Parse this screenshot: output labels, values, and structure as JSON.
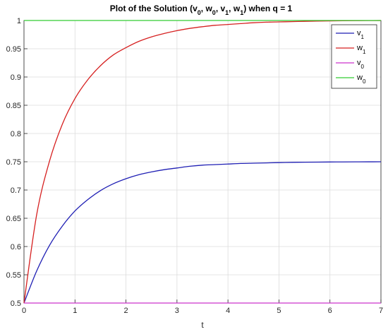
{
  "chart_data": {
    "type": "line",
    "title": "Plot of the Solution (v0, w0, v1, w1) when q = 1",
    "title_parts": [
      {
        "t": "Plot of the Solution (v"
      },
      {
        "t": "0",
        "sub": true
      },
      {
        "t": ", w"
      },
      {
        "t": "0",
        "sub": true
      },
      {
        "t": ", v"
      },
      {
        "t": "1",
        "sub": true
      },
      {
        "t": ", w"
      },
      {
        "t": "1",
        "sub": true
      },
      {
        "t": ") when q = 1"
      }
    ],
    "xlabel": "t",
    "ylabel": "",
    "xlim": [
      0,
      7
    ],
    "ylim": [
      0.5,
      1
    ],
    "xticks": [
      "0",
      "1",
      "2",
      "3",
      "4",
      "5",
      "6",
      "7"
    ],
    "yticks": [
      "0.5",
      "0.55",
      "0.6",
      "0.65",
      "0.7",
      "0.75",
      "0.8",
      "0.85",
      "0.9",
      "0.95",
      "1"
    ],
    "grid": true,
    "legend_position": "top-right",
    "x": [
      0,
      0.25,
      0.5,
      0.75,
      1,
      1.25,
      1.5,
      1.75,
      2,
      2.25,
      2.5,
      2.75,
      3,
      3.25,
      3.5,
      3.75,
      4,
      4.25,
      4.5,
      4.75,
      5,
      5.25,
      5.5,
      5.75,
      6,
      6.25,
      6.5,
      6.75,
      7
    ],
    "series": [
      {
        "name": "v1",
        "base": "v",
        "sub": "1",
        "color": "#1f1fb4",
        "values": [
          0.5,
          0.557,
          0.602,
          0.636,
          0.663,
          0.683,
          0.699,
          0.711,
          0.72,
          0.727,
          0.732,
          0.736,
          0.739,
          0.742,
          0.744,
          0.745,
          0.746,
          0.747,
          0.7475,
          0.748,
          0.7485,
          0.749,
          0.7492,
          0.7494,
          0.7496,
          0.7497,
          0.7498,
          0.7499,
          0.75
        ]
      },
      {
        "name": "w1",
        "base": "w",
        "sub": "1",
        "color": "#d62020",
        "values": [
          0.5,
          0.657,
          0.751,
          0.816,
          0.862,
          0.895,
          0.92,
          0.939,
          0.952,
          0.963,
          0.971,
          0.977,
          0.982,
          0.986,
          0.989,
          0.9915,
          0.993,
          0.9945,
          0.996,
          0.997,
          0.9975,
          0.998,
          0.9985,
          0.999,
          0.9993,
          0.9995,
          0.9997,
          0.9998,
          0.9999
        ]
      },
      {
        "name": "v0",
        "base": "v",
        "sub": "0",
        "color": "#cc33cc",
        "values": [
          0.5,
          0.5,
          0.5,
          0.5,
          0.5,
          0.5,
          0.5,
          0.5,
          0.5,
          0.5,
          0.5,
          0.5,
          0.5,
          0.5,
          0.5,
          0.5,
          0.5,
          0.5,
          0.5,
          0.5,
          0.5,
          0.5,
          0.5,
          0.5,
          0.5,
          0.5,
          0.5,
          0.5,
          0.5
        ]
      },
      {
        "name": "w0",
        "base": "w",
        "sub": "0",
        "color": "#33cc33",
        "values": [
          1,
          1,
          1,
          1,
          1,
          1,
          1,
          1,
          1,
          1,
          1,
          1,
          1,
          1,
          1,
          1,
          1,
          1,
          1,
          1,
          1,
          1,
          1,
          1,
          1,
          1,
          1,
          1,
          1
        ]
      }
    ]
  }
}
